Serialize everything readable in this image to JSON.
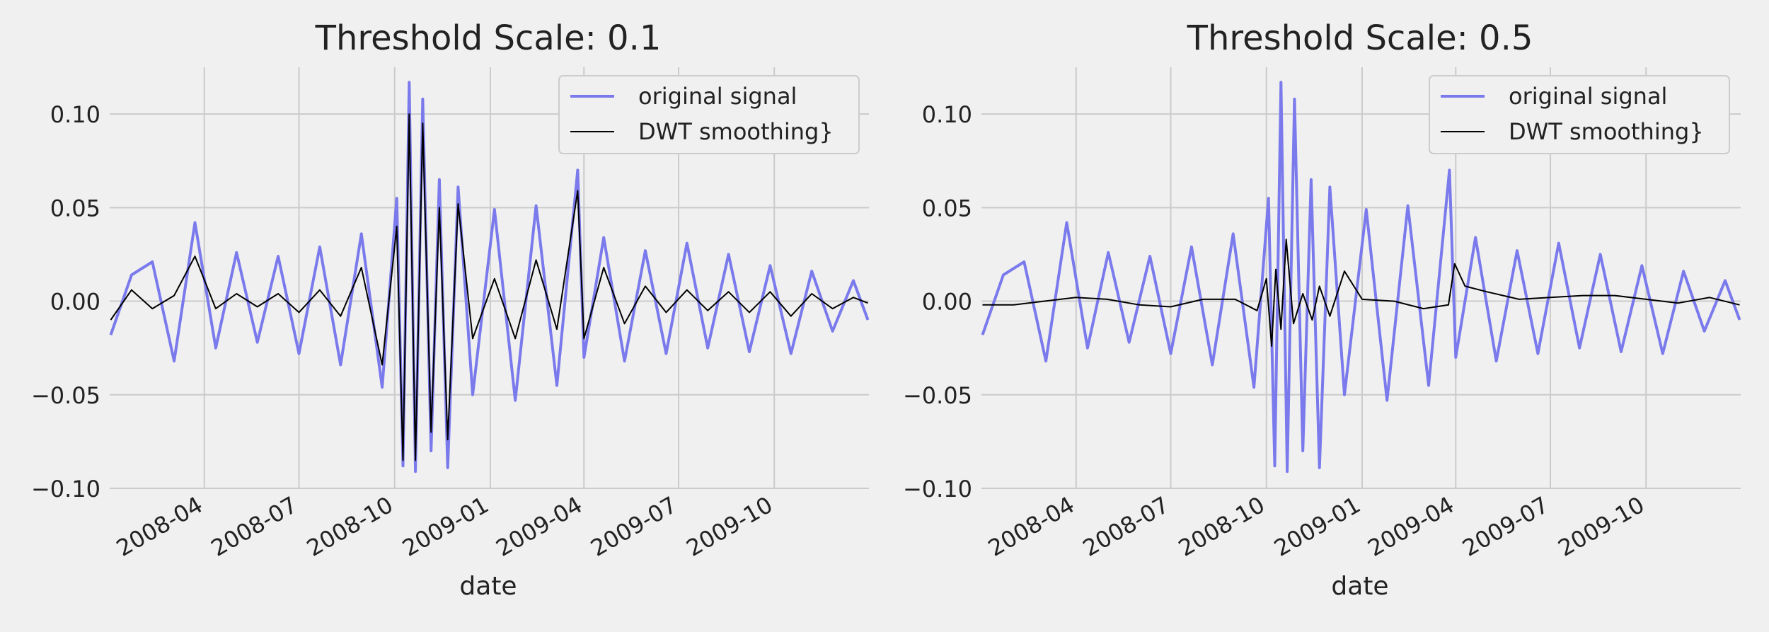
{
  "figure": {
    "background": "#f0f0f0",
    "grid_color": "#cbcbcb",
    "text_color": "#222222"
  },
  "chart_data": [
    {
      "type": "line",
      "title": "Threshold Scale: 0.1",
      "xlabel": "date",
      "ylabel": "",
      "ylim": [
        -0.1,
        0.125
      ],
      "xlim": [
        "2008-01-01",
        "2009-12-31"
      ],
      "yticks": [
        -0.1,
        -0.05,
        0.0,
        0.05,
        0.1
      ],
      "ytick_labels": [
        "−0.10",
        "−0.05",
        "0.00",
        "0.05",
        "0.10"
      ],
      "xticks": [
        "2008-04-01",
        "2008-07-01",
        "2008-10-01",
        "2009-01-01",
        "2009-04-01",
        "2009-07-01",
        "2009-10-01"
      ],
      "xtick_labels": [
        "2008-04",
        "2008-07",
        "2008-10",
        "2009-01",
        "2009-04",
        "2009-07",
        "2009-10"
      ],
      "grid": true,
      "legend_position": "top-right",
      "legend": [
        "original signal",
        "DWT smoothing}"
      ],
      "series": [
        {
          "name": "original signal",
          "color": "#7a7aec",
          "x": [
            "2008-01-02",
            "2008-01-22",
            "2008-02-11",
            "2008-03-03",
            "2008-03-23",
            "2008-04-12",
            "2008-05-02",
            "2008-05-22",
            "2008-06-11",
            "2008-07-01",
            "2008-07-21",
            "2008-08-10",
            "2008-08-30",
            "2008-09-19",
            "2008-10-03",
            "2008-10-09",
            "2008-10-15",
            "2008-10-21",
            "2008-10-28",
            "2008-11-05",
            "2008-11-13",
            "2008-11-21",
            "2008-12-01",
            "2008-12-15",
            "2009-01-05",
            "2009-01-25",
            "2009-02-14",
            "2009-03-06",
            "2009-03-26",
            "2009-04-01",
            "2009-04-20",
            "2009-05-10",
            "2009-05-30",
            "2009-06-19",
            "2009-07-09",
            "2009-07-29",
            "2009-08-18",
            "2009-09-07",
            "2009-09-27",
            "2009-10-17",
            "2009-11-06",
            "2009-11-26",
            "2009-12-16",
            "2009-12-30"
          ],
          "values": [
            -0.018,
            0.014,
            0.021,
            -0.032,
            0.042,
            -0.025,
            0.026,
            -0.022,
            0.024,
            -0.028,
            0.029,
            -0.034,
            0.036,
            -0.046,
            0.055,
            -0.088,
            0.117,
            -0.091,
            0.108,
            -0.08,
            0.065,
            -0.089,
            0.061,
            -0.05,
            0.049,
            -0.053,
            0.051,
            -0.045,
            0.07,
            -0.03,
            0.034,
            -0.032,
            0.027,
            -0.028,
            0.031,
            -0.025,
            0.025,
            -0.027,
            0.019,
            -0.028,
            0.016,
            -0.016,
            0.011,
            -0.01
          ]
        },
        {
          "name": "DWT smoothing}",
          "color": "#000000",
          "x": [
            "2008-01-02",
            "2008-01-22",
            "2008-02-11",
            "2008-03-03",
            "2008-03-23",
            "2008-04-12",
            "2008-05-02",
            "2008-05-22",
            "2008-06-11",
            "2008-07-01",
            "2008-07-21",
            "2008-08-10",
            "2008-08-30",
            "2008-09-19",
            "2008-10-03",
            "2008-10-09",
            "2008-10-15",
            "2008-10-21",
            "2008-10-28",
            "2008-11-05",
            "2008-11-13",
            "2008-11-21",
            "2008-12-01",
            "2008-12-15",
            "2009-01-05",
            "2009-01-25",
            "2009-02-14",
            "2009-03-06",
            "2009-03-26",
            "2009-04-01",
            "2009-04-20",
            "2009-05-10",
            "2009-05-30",
            "2009-06-19",
            "2009-07-09",
            "2009-07-29",
            "2009-08-18",
            "2009-09-07",
            "2009-09-27",
            "2009-10-17",
            "2009-11-06",
            "2009-11-26",
            "2009-12-16",
            "2009-12-30"
          ],
          "values": [
            -0.01,
            0.006,
            -0.004,
            0.003,
            0.024,
            -0.004,
            0.004,
            -0.003,
            0.004,
            -0.006,
            0.006,
            -0.008,
            0.018,
            -0.034,
            0.04,
            -0.085,
            0.1,
            -0.085,
            0.095,
            -0.07,
            0.05,
            -0.074,
            0.052,
            -0.02,
            0.012,
            -0.02,
            0.022,
            -0.015,
            0.059,
            -0.02,
            0.018,
            -0.012,
            0.008,
            -0.006,
            0.006,
            -0.005,
            0.005,
            -0.006,
            0.005,
            -0.008,
            0.004,
            -0.004,
            0.002,
            -0.001
          ]
        }
      ]
    },
    {
      "type": "line",
      "title": "Threshold Scale: 0.5",
      "xlabel": "date",
      "ylabel": "",
      "ylim": [
        -0.1,
        0.125
      ],
      "xlim": [
        "2008-01-01",
        "2009-12-31"
      ],
      "yticks": [
        -0.1,
        -0.05,
        0.0,
        0.05,
        0.1
      ],
      "ytick_labels": [
        "−0.10",
        "−0.05",
        "0.00",
        "0.05",
        "0.10"
      ],
      "xticks": [
        "2008-04-01",
        "2008-07-01",
        "2008-10-01",
        "2009-01-01",
        "2009-04-01",
        "2009-07-01",
        "2009-10-01"
      ],
      "xtick_labels": [
        "2008-04",
        "2008-07",
        "2008-10",
        "2009-01",
        "2009-04",
        "2009-07",
        "2009-10"
      ],
      "grid": true,
      "legend_position": "top-right",
      "legend": [
        "original signal",
        "DWT smoothing}"
      ],
      "series": [
        {
          "name": "original signal",
          "color": "#7a7aec",
          "x": [
            "2008-01-02",
            "2008-01-22",
            "2008-02-11",
            "2008-03-03",
            "2008-03-23",
            "2008-04-12",
            "2008-05-02",
            "2008-05-22",
            "2008-06-11",
            "2008-07-01",
            "2008-07-21",
            "2008-08-10",
            "2008-08-30",
            "2008-09-19",
            "2008-10-03",
            "2008-10-09",
            "2008-10-15",
            "2008-10-21",
            "2008-10-28",
            "2008-11-05",
            "2008-11-13",
            "2008-11-21",
            "2008-12-01",
            "2008-12-15",
            "2009-01-05",
            "2009-01-25",
            "2009-02-14",
            "2009-03-06",
            "2009-03-26",
            "2009-04-01",
            "2009-04-20",
            "2009-05-10",
            "2009-05-30",
            "2009-06-19",
            "2009-07-09",
            "2009-07-29",
            "2009-08-18",
            "2009-09-07",
            "2009-09-27",
            "2009-10-17",
            "2009-11-06",
            "2009-11-26",
            "2009-12-16",
            "2009-12-30"
          ],
          "values": [
            -0.018,
            0.014,
            0.021,
            -0.032,
            0.042,
            -0.025,
            0.026,
            -0.022,
            0.024,
            -0.028,
            0.029,
            -0.034,
            0.036,
            -0.046,
            0.055,
            -0.088,
            0.117,
            -0.091,
            0.108,
            -0.08,
            0.065,
            -0.089,
            0.061,
            -0.05,
            0.049,
            -0.053,
            0.051,
            -0.045,
            0.07,
            -0.03,
            0.034,
            -0.032,
            0.027,
            -0.028,
            0.031,
            -0.025,
            0.025,
            -0.027,
            0.019,
            -0.028,
            0.016,
            -0.016,
            0.011,
            -0.01
          ]
        },
        {
          "name": "DWT smoothing}",
          "color": "#000000",
          "x": [
            "2008-01-02",
            "2008-02-01",
            "2008-03-01",
            "2008-04-01",
            "2008-05-01",
            "2008-06-01",
            "2008-07-01",
            "2008-08-01",
            "2008-09-01",
            "2008-09-22",
            "2008-10-01",
            "2008-10-06",
            "2008-10-10",
            "2008-10-15",
            "2008-10-20",
            "2008-10-27",
            "2008-11-05",
            "2008-11-14",
            "2008-11-21",
            "2008-12-01",
            "2008-12-15",
            "2009-01-01",
            "2009-02-01",
            "2009-03-01",
            "2009-03-25",
            "2009-03-31",
            "2009-04-10",
            "2009-05-01",
            "2009-06-01",
            "2009-07-01",
            "2009-08-01",
            "2009-09-01",
            "2009-10-01",
            "2009-11-01",
            "2009-12-01",
            "2009-12-30"
          ],
          "values": [
            -0.002,
            -0.002,
            0.0,
            0.002,
            0.001,
            -0.002,
            -0.003,
            0.001,
            0.001,
            -0.005,
            0.012,
            -0.024,
            0.017,
            -0.015,
            0.033,
            -0.012,
            0.004,
            -0.01,
            0.008,
            -0.008,
            0.016,
            0.001,
            0.0,
            -0.004,
            -0.002,
            0.02,
            0.008,
            0.005,
            0.001,
            0.002,
            0.003,
            0.003,
            0.001,
            -0.001,
            0.002,
            -0.002
          ]
        }
      ]
    }
  ]
}
